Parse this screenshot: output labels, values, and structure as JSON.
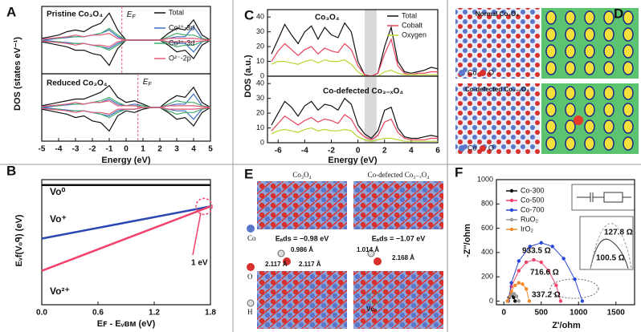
{
  "chart_data": [
    {
      "type": "line",
      "panel": "A",
      "annotation": "Pristine Co₃O₄",
      "ef": -0.25,
      "ef_label": "E",
      "ef_sub": "F",
      "ylabel": "DOS (states eV⁻¹)",
      "xlim": [
        -5,
        5
      ],
      "ylim": [
        -20,
        20
      ],
      "legend": "upper right",
      "x": [
        -5,
        -4.5,
        -4,
        -3.5,
        -3,
        -2.5,
        -2,
        -1.5,
        -1,
        -0.5,
        0,
        0.5,
        1,
        1.5,
        2,
        2.5,
        3,
        3.5,
        4,
        4.5,
        5
      ],
      "series": [
        {
          "name": "Total",
          "color": "#111111",
          "values": [
            1,
            2,
            3,
            5,
            6,
            5,
            8,
            10,
            16,
            6,
            0,
            0,
            0,
            0,
            0,
            4,
            7,
            6,
            12,
            3,
            0
          ],
          "values_down": [
            -1,
            -2,
            -3,
            -4,
            -6,
            -6,
            -8,
            -9,
            -15,
            -5,
            0,
            0,
            0,
            0,
            0,
            -3,
            -7,
            -6,
            -11,
            -3,
            0
          ]
        },
        {
          "name": "Co²⁺-3d",
          "color": "#3a6fc4",
          "values": [
            0,
            0.5,
            1,
            1.5,
            2,
            2,
            3,
            4,
            6,
            2,
            0,
            0,
            0,
            0,
            0,
            1,
            2,
            2,
            8,
            1,
            0
          ],
          "values_down": [
            0,
            -0.5,
            -1,
            -1.5,
            -2,
            -2,
            -3,
            -4,
            -5,
            -2,
            0,
            0,
            0,
            0,
            0,
            -1,
            -2,
            -2,
            -7,
            -1,
            0
          ]
        },
        {
          "name": "Co³⁺-3d",
          "color": "#3fae6a",
          "values": [
            0.5,
            1,
            1,
            2,
            2,
            2,
            3,
            4,
            7,
            3,
            0,
            0,
            0,
            0,
            0,
            2,
            4,
            3,
            3,
            1,
            0
          ],
          "values_down": [
            -0.5,
            -1,
            -1,
            -2,
            -2,
            -2,
            -3,
            -4,
            -6,
            -3,
            0,
            0,
            0,
            0,
            0,
            -2,
            -4,
            -3,
            -3,
            -1,
            0
          ]
        },
        {
          "name": "O²⁻-2p",
          "color": "#e2587a",
          "values": [
            0.5,
            1,
            1.5,
            2,
            3,
            2,
            3,
            3,
            4,
            1,
            0,
            0,
            0,
            0,
            0,
            1,
            1,
            1,
            1,
            0.5,
            0
          ],
          "values_down": [
            -0.5,
            -1,
            -1.5,
            -2,
            -3,
            -2,
            -3,
            -3,
            -4,
            -1,
            0,
            0,
            0,
            0,
            0,
            -1,
            -1,
            -1,
            -1,
            -0.5,
            0
          ]
        }
      ]
    },
    {
      "type": "line",
      "annotation": "Reduced Co₃O₄",
      "ef": 0.7,
      "ef_label": "E",
      "ef_sub": "F",
      "xlabel": "Energy (eV)",
      "xlim": [
        -5,
        5
      ],
      "ylim": [
        -20,
        20
      ],
      "xticks": [
        -5,
        -4,
        -3,
        -2,
        -1,
        0,
        1,
        2,
        3,
        4,
        5
      ],
      "x": [
        -5,
        -4.5,
        -4,
        -3.5,
        -3,
        -2.5,
        -2,
        -1.5,
        -1,
        -0.5,
        0,
        0.5,
        1,
        1.5,
        2,
        2.5,
        3,
        3.5,
        4,
        4.5,
        5
      ],
      "series": [
        {
          "color": "#111111",
          "values": [
            1,
            2,
            3,
            4,
            5,
            5,
            7,
            9,
            13,
            6,
            3,
            4,
            2,
            0,
            0,
            4,
            7,
            6,
            12,
            3,
            0
          ],
          "values_down": [
            -1,
            -2,
            -3,
            -4,
            -6,
            -5,
            -8,
            -9,
            -14,
            -5,
            -2,
            -3,
            -1,
            0,
            0,
            -3,
            -7,
            -6,
            -11,
            -3,
            0
          ]
        },
        {
          "color": "#3a6fc4",
          "values": [
            0,
            0.5,
            1,
            1.5,
            2,
            2,
            3,
            3,
            5,
            2,
            1,
            2,
            1,
            0,
            0,
            1,
            2,
            2,
            8,
            1,
            0
          ],
          "values_down": [
            0,
            -0.5,
            -1,
            -1.5,
            -2,
            -2,
            -3,
            -4,
            -5,
            -2,
            -1,
            -1,
            0,
            0,
            0,
            -1,
            -2,
            -2,
            -7,
            -1,
            0
          ]
        },
        {
          "color": "#3fae6a",
          "values": [
            0.5,
            1,
            1,
            2,
            2,
            2,
            3,
            4,
            6,
            3,
            1,
            1,
            1,
            0,
            0,
            2,
            4,
            3,
            3,
            1,
            0
          ],
          "values_down": [
            -0.5,
            -1,
            -1,
            -2,
            -2,
            -2,
            -3,
            -4,
            -6,
            -3,
            -1,
            -1,
            0,
            0,
            0,
            -2,
            -4,
            -3,
            -3,
            -1,
            0
          ]
        },
        {
          "color": "#e2587a",
          "values": [
            0.5,
            1,
            1.5,
            2,
            3,
            2,
            3,
            3,
            4,
            1,
            1,
            1,
            0,
            0,
            0,
            1,
            1,
            1,
            1,
            0.5,
            0
          ],
          "values_down": [
            -0.5,
            -1,
            -1.5,
            -2,
            -3,
            -2,
            -3,
            -3,
            -4,
            -1,
            -1,
            -1,
            0,
            0,
            0,
            -1,
            -1,
            -1,
            -1,
            -0.5,
            0
          ]
        }
      ]
    },
    {
      "type": "line",
      "panel": "C",
      "annotation": "Co₃O₄",
      "ylabel": "DOS (a.u.)",
      "legend": "upper right",
      "xlim": [
        -6.8,
        6
      ],
      "ylim": [
        0,
        45
      ],
      "yticks": [
        0,
        10,
        20,
        30,
        40
      ],
      "shade": [
        0.5,
        1.4
      ],
      "x": [
        -6.5,
        -6,
        -5.5,
        -5,
        -4.5,
        -4,
        -3.5,
        -3,
        -2.5,
        -2,
        -1.5,
        -1,
        -0.5,
        0,
        0.5,
        1,
        1.5,
        2,
        2.5,
        3,
        3.5,
        4,
        4.5,
        5,
        5.5,
        6
      ],
      "series": [
        {
          "name": "Total",
          "color": "#111111",
          "values": [
            15,
            25,
            35,
            28,
            22,
            30,
            34,
            25,
            33,
            28,
            26,
            36,
            30,
            10,
            1,
            0,
            2,
            20,
            33,
            10,
            3,
            2,
            3,
            4,
            6,
            5
          ]
        },
        {
          "name": "Cobalt",
          "color": "#e8415a",
          "values": [
            10,
            17,
            22,
            18,
            14,
            18,
            20,
            15,
            19,
            17,
            16,
            22,
            18,
            7,
            1,
            0,
            2,
            15,
            25,
            7,
            2,
            1,
            2,
            2,
            3,
            3
          ]
        },
        {
          "name": "Oxygen",
          "color": "#b8d62e",
          "values": [
            8,
            10,
            10,
            9,
            8,
            10,
            11,
            9,
            11,
            10,
            10,
            11,
            8,
            3,
            0,
            0,
            0,
            3,
            4,
            2,
            1,
            1,
            1,
            1,
            1,
            1
          ]
        }
      ]
    },
    {
      "type": "line",
      "annotation": "Co-defected Co₃₋ₓO₄",
      "xlabel": "Energy (eV)",
      "xlim": [
        -6.8,
        6
      ],
      "ylim": [
        0,
        45
      ],
      "yticks": [
        0,
        10,
        20,
        30,
        40
      ],
      "xticks": [
        -6,
        -4,
        -2,
        0,
        2,
        4,
        6
      ],
      "shade": [
        0.5,
        1.4
      ],
      "x": [
        -6.5,
        -6,
        -5.5,
        -5,
        -4.5,
        -4,
        -3.5,
        -3,
        -2.5,
        -2,
        -1.5,
        -1,
        -0.5,
        0,
        0.5,
        1,
        1.5,
        2,
        2.5,
        3,
        3.5,
        4,
        4.5,
        5,
        5.5,
        6
      ],
      "series": [
        {
          "color": "#111111",
          "values": [
            12,
            20,
            28,
            24,
            18,
            25,
            28,
            22,
            26,
            25,
            22,
            30,
            26,
            12,
            6,
            3,
            8,
            22,
            24,
            10,
            4,
            3,
            3,
            4,
            5,
            4
          ]
        },
        {
          "color": "#e8415a",
          "values": [
            8,
            13,
            18,
            15,
            12,
            15,
            17,
            14,
            16,
            15,
            13,
            19,
            16,
            8,
            4,
            2,
            5,
            14,
            16,
            7,
            3,
            2,
            2,
            2,
            3,
            3
          ]
        },
        {
          "color": "#b8d62e",
          "values": [
            6,
            8,
            9,
            8,
            7,
            9,
            10,
            8,
            9,
            8,
            8,
            9,
            8,
            4,
            2,
            1,
            2,
            3,
            3,
            2,
            1,
            1,
            1,
            1,
            1,
            1
          ]
        }
      ]
    },
    {
      "type": "line",
      "panel": "B",
      "ylabel": "Eᵥf(Vₒᑫ) (eV)",
      "xlabel": "Eꜰ - Eᵥʙᴍ (eV)",
      "annotation": "1 eV",
      "xlim": [
        0,
        1.8
      ],
      "ylim": [
        -3.5,
        3.5
      ],
      "xticks": [
        {
          "value": 0,
          "label": "0.0"
        },
        0.6,
        1.2,
        1.8
      ],
      "x": [
        0,
        1.8
      ],
      "series": [
        {
          "name": "Vo⁰",
          "color": "#111111",
          "values": [
            3.2,
            3.2
          ]
        },
        {
          "name": "Vo⁺",
          "color": "#2b47b3",
          "values": [
            0.2,
            2.0
          ]
        },
        {
          "name": "Vo²⁺",
          "color": "#f0436b",
          "values": [
            -1.6,
            2.0
          ]
        }
      ]
    },
    {
      "type": "scatter",
      "panel": "F",
      "xlabel": "Z'/ohm",
      "ylabel": "-Z''/ohm",
      "legend": "upper left",
      "xlim": [
        -100,
        1750
      ],
      "ylim": [
        -30,
        1000
      ],
      "xticks": [
        0,
        500,
        1000,
        1500
      ],
      "yticks": [
        0,
        200,
        400,
        600,
        800,
        1000
      ],
      "series": [
        {
          "name": "Co-300",
          "color": "#111111",
          "x": [
            50,
            70,
            90,
            110,
            130,
            150
          ],
          "values": [
            0,
            30,
            50,
            50,
            30,
            0
          ]
        },
        {
          "name": "Co-500",
          "color": "#f0436b",
          "x": [
            60,
            100,
            200,
            300,
            400,
            500,
            600,
            700,
            760
          ],
          "values": [
            0,
            120,
            250,
            320,
            340,
            320,
            250,
            130,
            0
          ]
        },
        {
          "name": "Co-700",
          "color": "#2b47d8",
          "x": [
            60,
            100,
            200,
            350,
            500,
            650,
            800,
            950,
            1050
          ],
          "values": [
            0,
            150,
            330,
            450,
            480,
            450,
            350,
            180,
            0
          ]
        },
        {
          "name": "RuO₂",
          "color": "#9a9a9a",
          "x": [
            50,
            80,
            110,
            140,
            170,
            200
          ],
          "values": [
            0,
            40,
            60,
            60,
            40,
            0
          ]
        },
        {
          "name": "IrO₂",
          "color": "#f08a2a",
          "x": [
            50,
            100,
            150,
            200,
            250,
            300,
            340
          ],
          "values": [
            0,
            80,
            130,
            150,
            140,
            100,
            0
          ]
        }
      ],
      "annotations": [
        {
          "text": "933.5 Ω",
          "color": "#2b47d8"
        },
        {
          "text": "716.6 Ω",
          "color": "#f0436b"
        },
        {
          "text": "337.2 Ω",
          "color": "#f08a2a"
        },
        {
          "text": "127.8 Ω",
          "color": "#9a9a9a"
        },
        {
          "text": "100.5 Ω",
          "color": "#111111"
        }
      ]
    }
  ],
  "images": {
    "D": {
      "panel": "D",
      "top_title": "Normal Co₃O₄",
      "bottom_title": "Co-defected Co₃₋ₓO₄",
      "legend": [
        "Co",
        "O"
      ]
    },
    "E": {
      "panel": "E",
      "left_title": "Co₃O₄",
      "right_title": "Co-defected Co₃₋ₓO₄",
      "side": [
        "Co",
        "O",
        "H"
      ],
      "left_energy": "Eₐds = −0.98 eV",
      "right_energy": "Eₐds = −1.07 eV",
      "left_bonds": [
        "0.986 Å",
        "2.117 Å",
        "2.117 Å"
      ],
      "right_bonds": [
        "1.014 Å",
        "2.168 Å"
      ],
      "vacancy": "Vᴄₒ"
    }
  }
}
